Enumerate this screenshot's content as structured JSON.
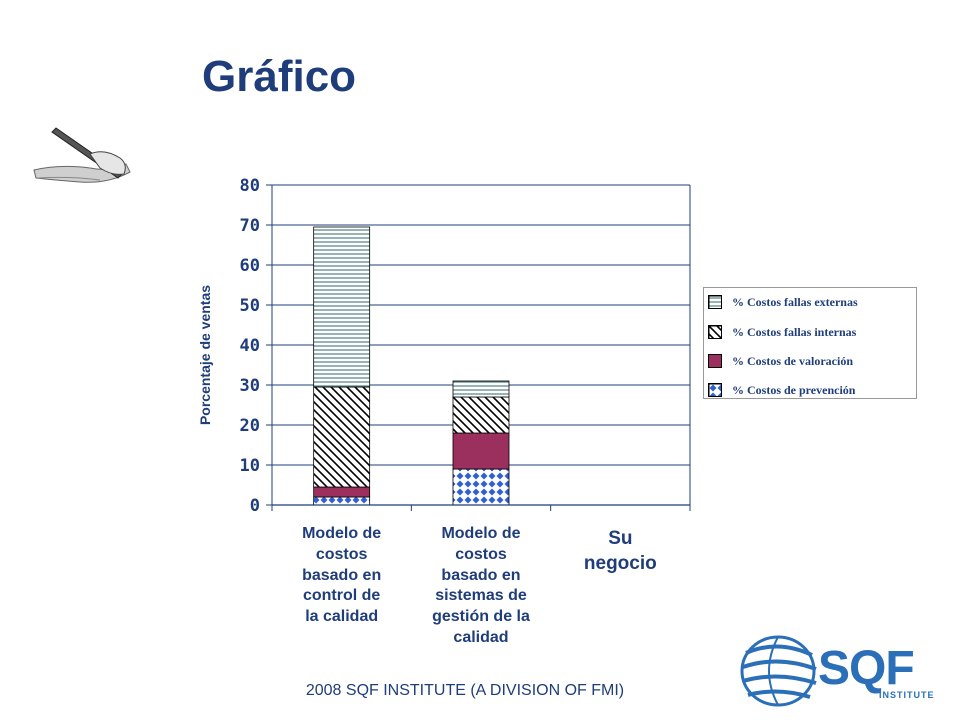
{
  "slide": {
    "title": "Gráfico",
    "footer": "2008 SQF INSTITUTE (A DIVISION OF FMI)"
  },
  "logo": {
    "name": "SQF",
    "sub": "INSTITUTE"
  },
  "chart_data": {
    "type": "bar",
    "stacked": true,
    "ylabel": "Porcentaje de ventas",
    "ylim": [
      0,
      80
    ],
    "yticks": [
      0,
      10,
      20,
      30,
      40,
      50,
      60,
      70,
      80
    ],
    "categories": [
      "Modelo de costos basado en control de la calidad",
      "Modelo de costos basado en sistemas de gestión de la calidad",
      "Su negocio"
    ],
    "category_lines": [
      [
        "Modelo de",
        "costos",
        "basado en",
        "control de",
        "la calidad"
      ],
      [
        "Modelo de",
        "costos",
        "basado en",
        "sistemas de",
        "gestión de la",
        "calidad"
      ],
      [
        "Su",
        "negocio"
      ]
    ],
    "series": [
      {
        "name": "% Costos de prevención",
        "values": [
          2,
          9,
          0
        ],
        "pattern": "diamond"
      },
      {
        "name": "% Costos de valoración",
        "values": [
          2.5,
          9,
          0
        ],
        "pattern": "solid"
      },
      {
        "name": "% Costos fallas internas",
        "values": [
          25,
          9,
          0
        ],
        "pattern": "diag"
      },
      {
        "name": "% Costos fallas externas",
        "values": [
          40,
          4,
          0
        ],
        "pattern": "hlines"
      }
    ],
    "legend_position": "right",
    "grid": true,
    "colors": {
      "valoracion": "#9b2f5e",
      "prevencion": "#2f5fd0",
      "axis": "#1f3d7a",
      "text": "#1f3d7a"
    }
  }
}
